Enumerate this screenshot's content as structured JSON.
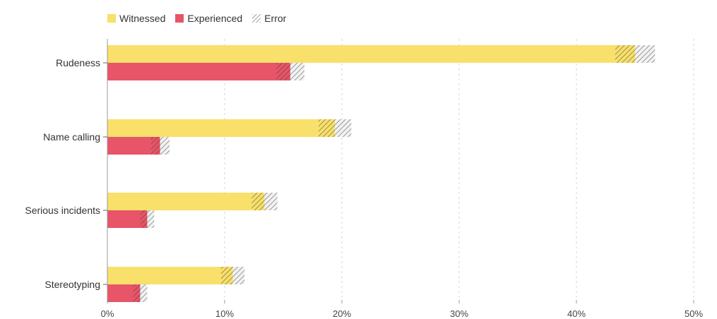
{
  "chart_data": {
    "type": "bar",
    "orientation": "horizontal",
    "categories": [
      "Rudeness",
      "Name calling",
      "Serious incidents",
      "Stereotyping"
    ],
    "series": [
      {
        "name": "Witnessed",
        "color": "#f8e06a",
        "values": [
          45.0,
          19.4,
          13.4,
          10.7
        ],
        "error": [
          1.7,
          1.4,
          1.1,
          1.0
        ]
      },
      {
        "name": "Experienced",
        "color": "#e85468",
        "values": [
          15.6,
          4.5,
          3.4,
          2.8
        ],
        "error": [
          1.2,
          0.8,
          0.6,
          0.6
        ]
      }
    ],
    "error_legend_label": "Error",
    "xlim": [
      0,
      50
    ],
    "x_ticks": [
      "0%",
      "10%",
      "20%",
      "30%",
      "40%",
      "50%"
    ],
    "grid": true,
    "legend_position": "top-left"
  }
}
